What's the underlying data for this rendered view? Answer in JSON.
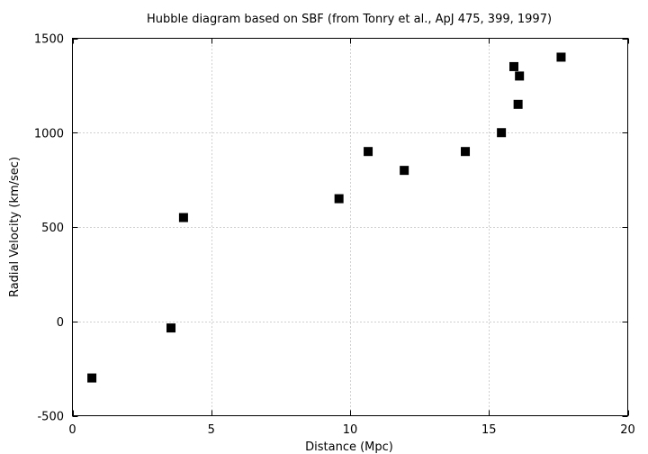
{
  "chart_data": {
    "type": "scatter",
    "title": "Hubble diagram based on SBF (from Tonry et al., ApJ 475, 399, 1997)",
    "xlabel": "Distance (Mpc)",
    "ylabel": "Radial Velocity (km/sec)",
    "xlim": [
      0,
      20
    ],
    "ylim": [
      -500,
      1500
    ],
    "xticks": [
      0,
      5,
      10,
      15,
      20
    ],
    "yticks": [
      -500,
      0,
      500,
      1000,
      1500
    ],
    "xtick_labels": [
      "0",
      "5",
      "10",
      "15",
      "20"
    ],
    "ytick_labels": [
      "-500",
      "0",
      "500",
      "1000",
      "1500"
    ],
    "grid": true,
    "marker": "square",
    "marker_color": "#000000",
    "points": [
      {
        "x": 0.7,
        "y": -300
      },
      {
        "x": 3.55,
        "y": -35
      },
      {
        "x": 4.0,
        "y": 550
      },
      {
        "x": 9.6,
        "y": 650
      },
      {
        "x": 10.65,
        "y": 900
      },
      {
        "x": 11.95,
        "y": 800
      },
      {
        "x": 14.15,
        "y": 900
      },
      {
        "x": 15.45,
        "y": 1000
      },
      {
        "x": 15.9,
        "y": 1350
      },
      {
        "x": 16.05,
        "y": 1150
      },
      {
        "x": 16.1,
        "y": 1300
      },
      {
        "x": 17.6,
        "y": 1400
      }
    ]
  }
}
